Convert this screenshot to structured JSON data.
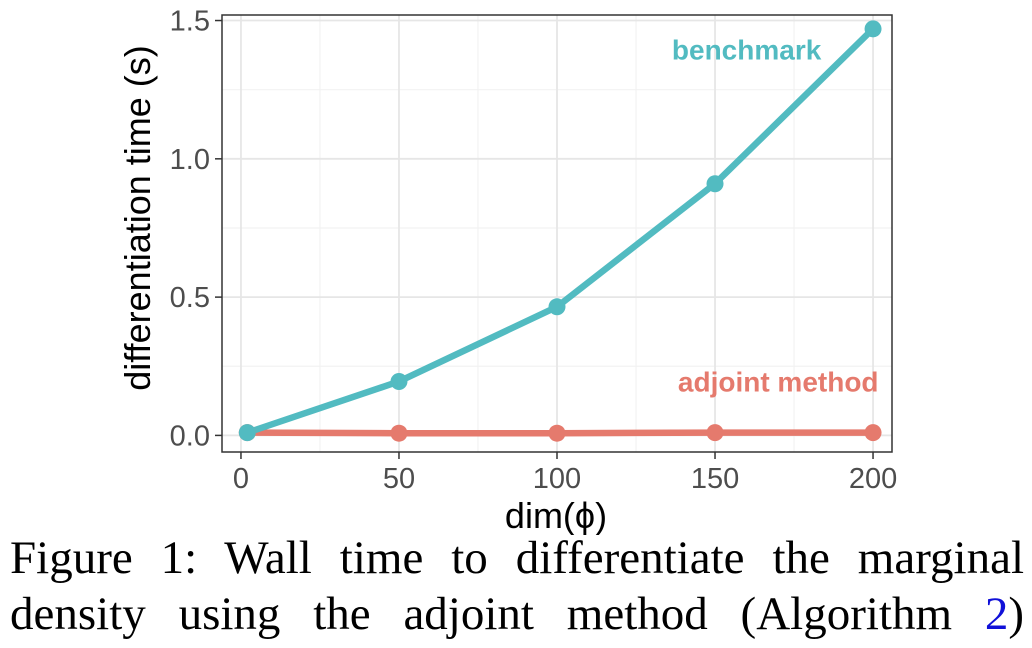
{
  "chart_data": {
    "type": "line",
    "xlabel": "dim(ϕ)",
    "ylabel": "differentiation time (s)",
    "xlim": [
      -6,
      206
    ],
    "ylim": [
      -0.06,
      1.52
    ],
    "x_ticks": [
      0,
      50,
      100,
      150,
      200
    ],
    "x_tick_labels": [
      "0",
      "50",
      "100",
      "150",
      "200"
    ],
    "y_ticks": [
      0.0,
      0.5,
      1.0,
      1.5
    ],
    "y_tick_labels": [
      "0.0",
      "0.5",
      "1.0",
      "1.5"
    ],
    "grid": true,
    "legend": "direct labels on lines",
    "series": [
      {
        "name": "benchmark",
        "color": "#52bbc1",
        "x": [
          2,
          50,
          100,
          150,
          200
        ],
        "y": [
          0.01,
          0.195,
          0.465,
          0.91,
          1.47
        ],
        "label_position": [
          160,
          1.395
        ]
      },
      {
        "name": "adjoint method",
        "color": "#e57a6d",
        "x": [
          2,
          50,
          100,
          150,
          200
        ],
        "y": [
          0.01,
          0.008,
          0.008,
          0.01,
          0.01
        ],
        "label_position": [
          170,
          0.195
        ]
      }
    ]
  },
  "caption": {
    "line1": "Figure 1: Wall time to differentiate the marginal",
    "line2_before": "density using the adjoint method (Algorithm ",
    "line2_ref": "2",
    "line2_after": ")"
  },
  "colors": {
    "grid_major": "#e6e6e6",
    "grid_minor": "#f2f2f2",
    "panel_border": "#333333",
    "tick_text": "#4d4d4d",
    "ref_link": "#1010d8"
  }
}
